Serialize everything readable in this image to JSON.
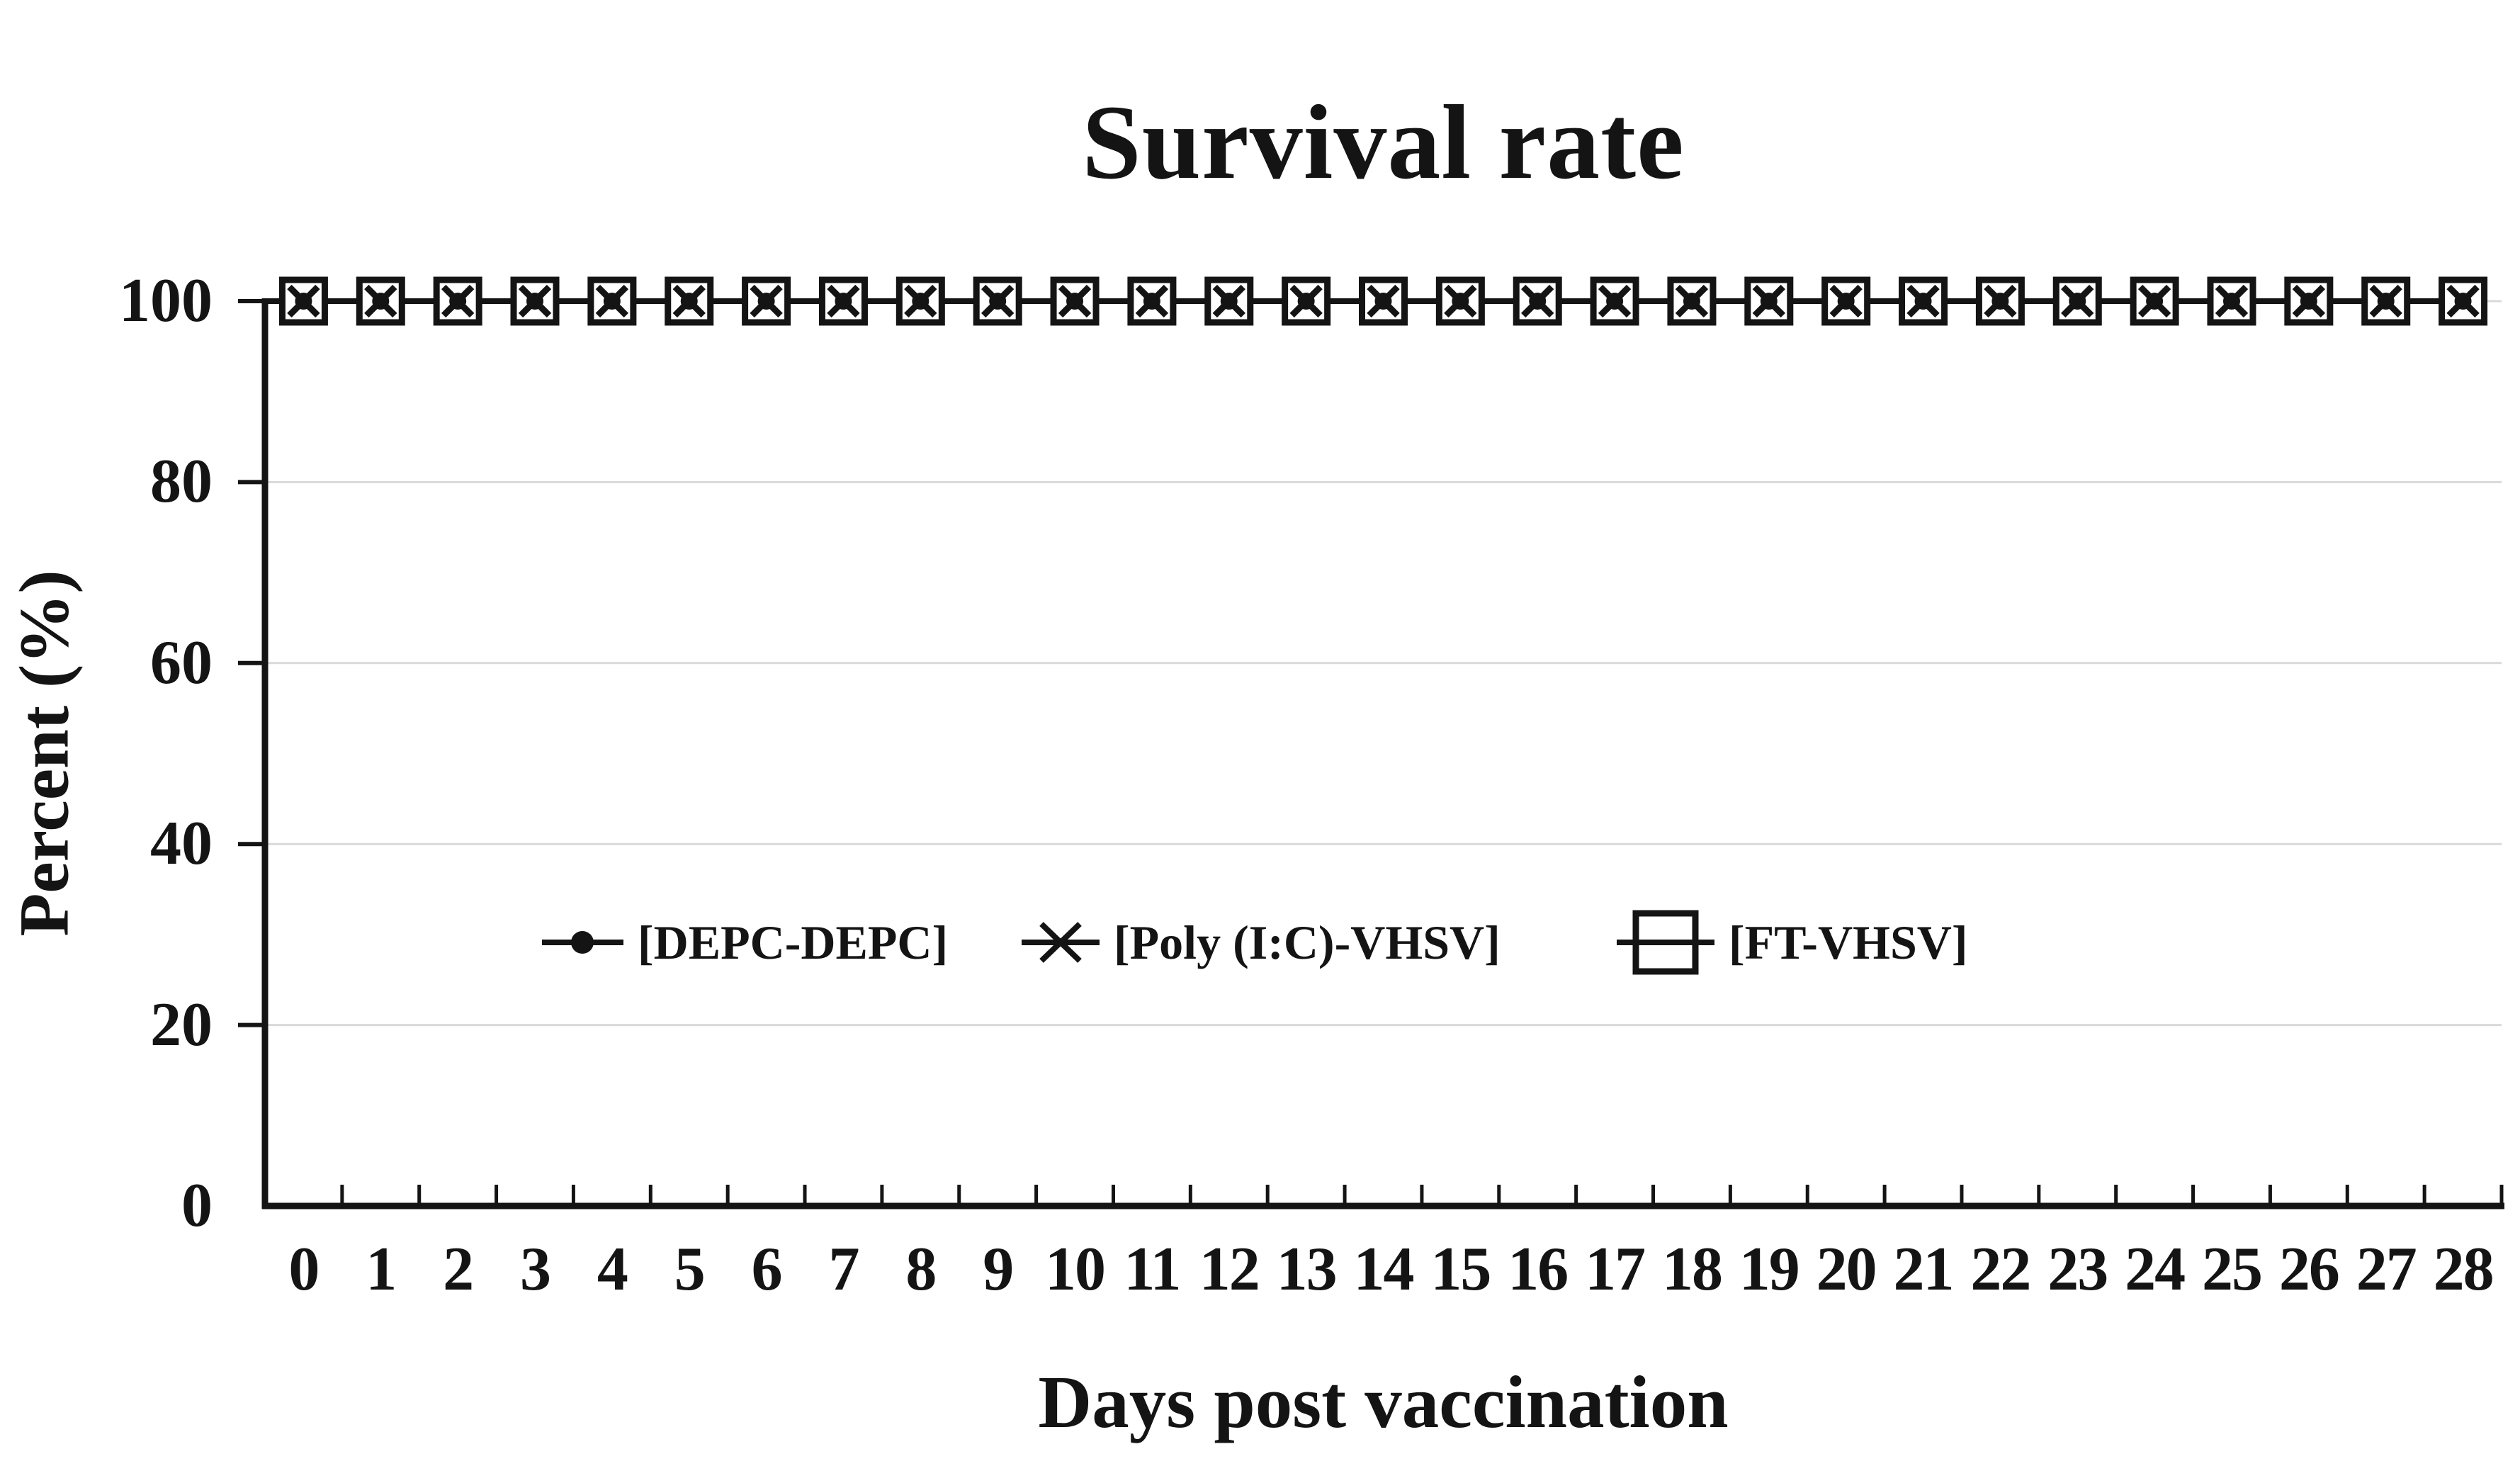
{
  "title": "Survival rate",
  "axes": {
    "y_label": "Percent (%)",
    "x_label": "Days post vaccination",
    "y_ticks": [
      "100",
      "80",
      "60",
      "40",
      "20",
      "0"
    ],
    "x_ticks": [
      "0",
      "1",
      "2",
      "3",
      "4",
      "5",
      "6",
      "7",
      "8",
      "9",
      "10",
      "11",
      "12",
      "13",
      "14",
      "15",
      "16",
      "17",
      "18",
      "19",
      "20",
      "21",
      "22",
      "23",
      "24",
      "25",
      "26",
      "27",
      "28"
    ]
  },
  "legend": {
    "items": [
      {
        "label": "[DEPC-DEPC]",
        "marker": "line-with-filled-dot"
      },
      {
        "label": "[Poly (I:C)-VHSV]",
        "marker": "line-with-x-cross"
      },
      {
        "label": "[FT-VHSV]",
        "marker": "open-square-on-line"
      }
    ]
  },
  "colors": {
    "series": "#141414",
    "gridline": "#d9d9d9",
    "text": "#141414",
    "background": "#ffffff"
  },
  "chart_data": {
    "type": "line",
    "title": "Survival rate",
    "xlabel": "Days post vaccination",
    "ylabel": "Percent (%)",
    "x": [
      0,
      1,
      2,
      3,
      4,
      5,
      6,
      7,
      8,
      9,
      10,
      11,
      12,
      13,
      14,
      15,
      16,
      17,
      18,
      19,
      20,
      21,
      22,
      23,
      24,
      25,
      26,
      27,
      28
    ],
    "series": [
      {
        "name": "[DEPC-DEPC]",
        "marker": "filled-circle",
        "values": [
          100,
          100,
          100,
          100,
          100,
          100,
          100,
          100,
          100,
          100,
          100,
          100,
          100,
          100,
          100,
          100,
          100,
          100,
          100,
          100,
          100,
          100,
          100,
          100,
          100,
          100,
          100,
          100,
          100
        ]
      },
      {
        "name": "[Poly (I:C)-VHSV]",
        "marker": "x-cross",
        "values": [
          100,
          100,
          100,
          100,
          100,
          100,
          100,
          100,
          100,
          100,
          100,
          100,
          100,
          100,
          100,
          100,
          100,
          100,
          100,
          100,
          100,
          100,
          100,
          100,
          100,
          100,
          100,
          100,
          100
        ]
      },
      {
        "name": "[FT-VHSV]",
        "marker": "open-square",
        "values": [
          100,
          100,
          100,
          100,
          100,
          100,
          100,
          100,
          100,
          100,
          100,
          100,
          100,
          100,
          100,
          100,
          100,
          100,
          100,
          100,
          100,
          100,
          100,
          100,
          100,
          100,
          100,
          100,
          100
        ]
      }
    ],
    "ylim": [
      0,
      100
    ],
    "y_tick_interval": 20,
    "grid": "horizontal-light-gray",
    "legend_position": "inside-plot-left-center"
  }
}
